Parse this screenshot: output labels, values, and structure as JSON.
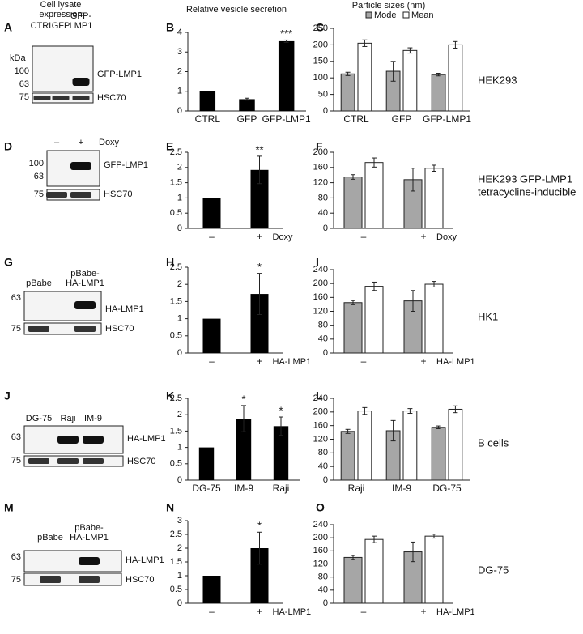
{
  "headers": {
    "lysate": [
      "Cell lysate",
      "expression"
    ],
    "secretion": "Relative vesicle secretion",
    "sizes": "Particle sizes (nm)"
  },
  "blots": [
    {
      "panel": "A",
      "unit": "kDa",
      "lanes": [
        [
          "CTRL"
        ],
        [
          "GFP"
        ],
        [
          "GFP-",
          "LMP1"
        ]
      ],
      "markers": [
        100,
        63,
        75
      ],
      "bands": [
        "GFP-LMP1",
        "HSC70"
      ]
    },
    {
      "panel": "D",
      "lanes": [
        [
          "–"
        ],
        [
          "+"
        ]
      ],
      "treatment": "Doxy",
      "markers": [
        100,
        63,
        75
      ],
      "bands": [
        "GFP-LMP1",
        "HSC70"
      ]
    },
    {
      "panel": "G",
      "lanes": [
        [
          "pBabe"
        ],
        [
          "pBabe-",
          "HA-LMP1"
        ]
      ],
      "markers": [
        63,
        75
      ],
      "bands": [
        "HA-LMP1",
        "HSC70"
      ]
    },
    {
      "panel": "J",
      "lanes": [
        [
          "DG-75"
        ],
        [
          "Raji"
        ],
        [
          "IM-9"
        ]
      ],
      "markers": [
        63,
        75
      ],
      "bands": [
        "HA-LMP1",
        "HSC70"
      ]
    },
    {
      "panel": "M",
      "lanes": [
        [
          "pBabe"
        ],
        [
          "pBabe-",
          "HA-LMP1"
        ]
      ],
      "markers": [
        63,
        75
      ],
      "bands": [
        "HA-LMP1",
        "HSC70"
      ]
    }
  ],
  "cell_lines": [
    [
      "HEK293"
    ],
    [
      "HEK293 GFP-LMP1",
      "tetracycline-inducible"
    ],
    [
      "HK1"
    ],
    [
      "B cells"
    ],
    [
      "DG-75"
    ]
  ],
  "chart_data": [
    {
      "type": "bar",
      "panel": "B",
      "categories": [
        "CTRL",
        "GFP",
        "GFP-LMP1"
      ],
      "values": [
        1,
        0.6,
        3.55
      ],
      "errors": [
        null,
        0.05,
        0.06
      ],
      "annotations": [
        null,
        null,
        "***"
      ],
      "color": "#000000",
      "ylim": [
        0,
        4
      ],
      "yticks": [
        0,
        1,
        2,
        3,
        4
      ]
    },
    {
      "type": "bar",
      "panel": "C",
      "categories": [
        "CTRL",
        "GFP",
        "GFP-LMP1"
      ],
      "series": [
        {
          "name": "Mode",
          "color": "#a6a6a6",
          "values": [
            112,
            120,
            110
          ],
          "errors": [
            5,
            30,
            4
          ]
        },
        {
          "name": "Mean",
          "color": "#ffffff",
          "values": [
            205,
            183,
            200
          ],
          "errors": [
            10,
            8,
            10
          ]
        }
      ],
      "ylim": [
        0,
        250
      ],
      "yticks": [
        0,
        50,
        100,
        150,
        200,
        250
      ]
    },
    {
      "type": "bar",
      "panel": "E",
      "categories": [
        "–",
        "+"
      ],
      "xlabel": "Doxy",
      "values": [
        1,
        1.92
      ],
      "errors": [
        null,
        0.45
      ],
      "annotations": [
        null,
        "**"
      ],
      "color": "#000000",
      "ylim": [
        0,
        2.5
      ],
      "yticks": [
        0,
        0.5,
        1,
        1.5,
        2,
        2.5
      ]
    },
    {
      "type": "bar",
      "panel": "F",
      "categories": [
        "–",
        "+"
      ],
      "xlabel": "Doxy",
      "series": [
        {
          "color": "#a6a6a6",
          "values": [
            135,
            128
          ],
          "errors": [
            6,
            30
          ]
        },
        {
          "color": "#ffffff",
          "values": [
            173,
            158
          ],
          "errors": [
            12,
            8
          ]
        }
      ],
      "ylim": [
        0,
        200
      ],
      "yticks": [
        0,
        40,
        80,
        120,
        160,
        200
      ]
    },
    {
      "type": "bar",
      "panel": "H",
      "categories": [
        "–",
        "+"
      ],
      "xlabel": "HA-LMP1",
      "values": [
        1,
        1.72
      ],
      "errors": [
        null,
        0.6
      ],
      "annotations": [
        null,
        "*"
      ],
      "color": "#000000",
      "ylim": [
        0,
        2.5
      ],
      "yticks": [
        0,
        0.5,
        1,
        1.5,
        2,
        2.5
      ]
    },
    {
      "type": "bar",
      "panel": "I",
      "categories": [
        "–",
        "+"
      ],
      "xlabel": "HA-LMP1",
      "series": [
        {
          "color": "#a6a6a6",
          "values": [
            145,
            150
          ],
          "errors": [
            6,
            30
          ]
        },
        {
          "color": "#ffffff",
          "values": [
            192,
            198
          ],
          "errors": [
            12,
            8
          ]
        }
      ],
      "ylim": [
        0,
        240
      ],
      "yticks": [
        0,
        40,
        80,
        120,
        160,
        200,
        240
      ]
    },
    {
      "type": "bar",
      "panel": "K",
      "categories": [
        "DG-75",
        "IM-9",
        "Raji"
      ],
      "values": [
        1,
        1.88,
        1.65
      ],
      "errors": [
        null,
        0.4,
        0.28
      ],
      "annotations": [
        null,
        "*",
        "*"
      ],
      "color": "#000000",
      "ylim": [
        0,
        2.5
      ],
      "yticks": [
        0,
        0.5,
        1,
        1.5,
        2,
        2.5
      ]
    },
    {
      "type": "bar",
      "panel": "L",
      "categories": [
        "Raji",
        "IM-9",
        "DG-75"
      ],
      "series": [
        {
          "color": "#a6a6a6",
          "values": [
            143,
            145,
            155
          ],
          "errors": [
            6,
            30,
            4
          ]
        },
        {
          "color": "#ffffff",
          "values": [
            203,
            203,
            208
          ],
          "errors": [
            10,
            7,
            10
          ]
        }
      ],
      "ylim": [
        0,
        240
      ],
      "yticks": [
        0,
        40,
        80,
        120,
        160,
        200,
        240
      ]
    },
    {
      "type": "bar",
      "panel": "N",
      "categories": [
        "–",
        "+"
      ],
      "xlabel": "HA-LMP1",
      "values": [
        1,
        2
      ],
      "errors": [
        null,
        0.58
      ],
      "annotations": [
        null,
        "*"
      ],
      "color": "#000000",
      "ylim": [
        0,
        3
      ],
      "yticks": [
        0,
        0.5,
        1,
        1.5,
        2,
        2.5,
        3
      ]
    },
    {
      "type": "bar",
      "panel": "O",
      "categories": [
        "–",
        "+"
      ],
      "xlabel": "HA-LMP1",
      "series": [
        {
          "color": "#a6a6a6",
          "values": [
            140,
            157
          ],
          "errors": [
            6,
            30
          ]
        },
        {
          "color": "#ffffff",
          "values": [
            195,
            205
          ],
          "errors": [
            10,
            6
          ]
        }
      ],
      "ylim": [
        0,
        240
      ],
      "yticks": [
        0,
        40,
        80,
        120,
        160,
        200,
        240
      ]
    }
  ]
}
